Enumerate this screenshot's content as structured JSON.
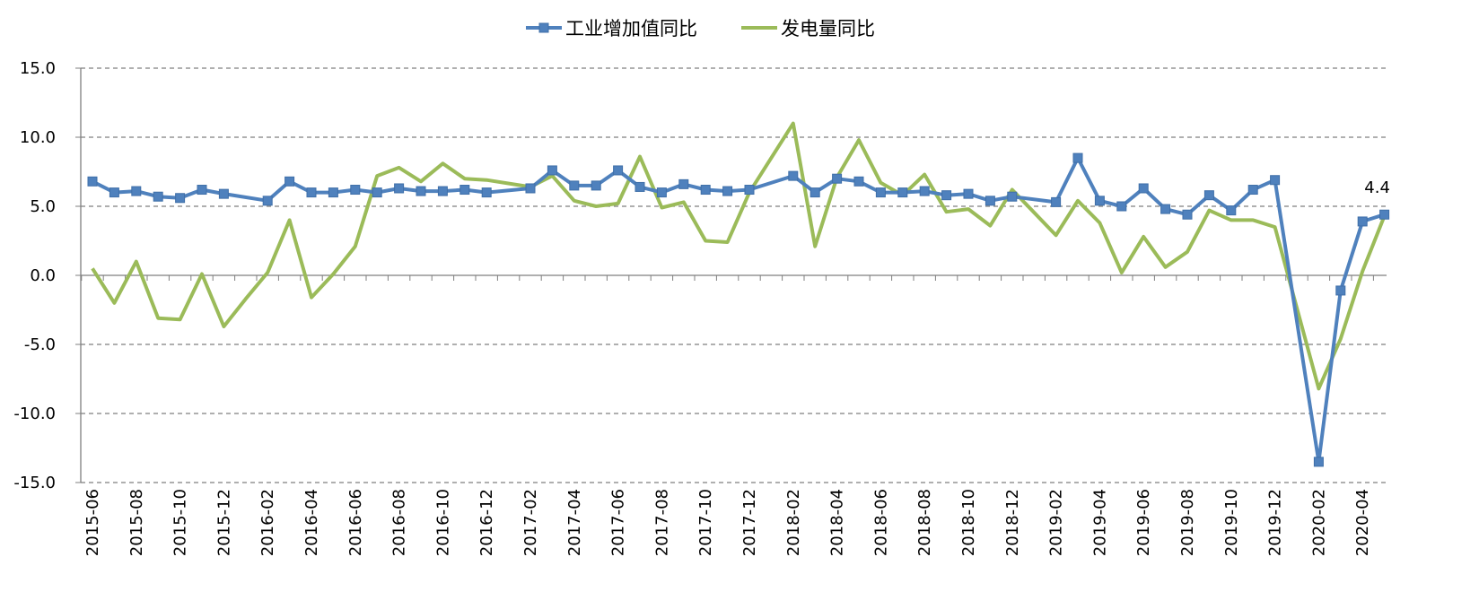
{
  "chart_data": {
    "type": "line",
    "ylim": [
      -15,
      15
    ],
    "yticks": [
      15,
      10,
      5,
      0,
      -5,
      -10,
      -15
    ],
    "ytick_labels": [
      "15.0",
      "10.0",
      "5.0",
      "0.0",
      "-5.0",
      "-10.0",
      "-15.0"
    ],
    "grid": true,
    "legend_position": "top-center",
    "x": [
      "2015-06",
      "2015-07",
      "2015-08",
      "2015-09",
      "2015-10",
      "2015-11",
      "2015-12",
      "2016-01",
      "2016-02",
      "2016-03",
      "2016-04",
      "2016-05",
      "2016-06",
      "2016-07",
      "2016-08",
      "2016-09",
      "2016-10",
      "2016-11",
      "2016-12",
      "2017-01",
      "2017-02",
      "2017-03",
      "2017-04",
      "2017-05",
      "2017-06",
      "2017-07",
      "2017-08",
      "2017-09",
      "2017-10",
      "2017-11",
      "2017-12",
      "2018-01",
      "2018-02",
      "2018-03",
      "2018-04",
      "2018-05",
      "2018-06",
      "2018-07",
      "2018-08",
      "2018-09",
      "2018-10",
      "2018-11",
      "2018-12",
      "2019-01",
      "2019-02",
      "2019-03",
      "2019-04",
      "2019-05",
      "2019-06",
      "2019-07",
      "2019-08",
      "2019-09",
      "2019-10",
      "2019-11",
      "2019-12",
      "2020-01",
      "2020-02",
      "2020-03",
      "2020-04",
      "2020-05"
    ],
    "xtick_labels": [
      "2015-06",
      "2015-08",
      "2015-10",
      "2015-12",
      "2016-02",
      "2016-04",
      "2016-06",
      "2016-08",
      "2016-10",
      "2016-12",
      "2017-02",
      "2017-04",
      "2017-06",
      "2017-08",
      "2017-10",
      "2017-12",
      "2018-02",
      "2018-04",
      "2018-06",
      "2018-08",
      "2018-10",
      "2018-12",
      "2019-02",
      "2019-04",
      "2019-06",
      "2019-08",
      "2019-10",
      "2019-12",
      "2020-02",
      "2020-04"
    ],
    "series": [
      {
        "name": "工业增加值同比",
        "color": "#4f81bd",
        "marker": "square",
        "values": [
          6.8,
          6.0,
          6.1,
          5.7,
          5.6,
          6.2,
          5.9,
          null,
          5.4,
          6.8,
          6.0,
          6.0,
          6.2,
          6.0,
          6.3,
          6.1,
          6.1,
          6.2,
          6.0,
          null,
          6.3,
          7.6,
          6.5,
          6.5,
          7.6,
          6.4,
          6.0,
          6.6,
          6.2,
          6.1,
          6.2,
          null,
          7.2,
          6.0,
          7.0,
          6.8,
          6.0,
          6.0,
          6.1,
          5.8,
          5.9,
          5.4,
          5.7,
          null,
          5.3,
          8.5,
          5.4,
          5.0,
          6.3,
          4.8,
          4.4,
          5.8,
          4.7,
          6.2,
          6.9,
          null,
          -13.5,
          -1.1,
          3.9,
          4.4
        ]
      },
      {
        "name": "发电量同比",
        "color": "#9bbb59",
        "marker": "none",
        "values": [
          0.5,
          -2.0,
          1.0,
          -3.1,
          -3.2,
          0.1,
          -3.7,
          -1.7,
          0.2,
          4.0,
          -1.6,
          0.1,
          2.1,
          7.2,
          7.8,
          6.8,
          8.1,
          7.0,
          6.9,
          null,
          6.4,
          7.2,
          5.4,
          5.0,
          5.2,
          8.6,
          4.9,
          5.3,
          2.5,
          2.4,
          6.0,
          null,
          11.0,
          2.1,
          7.1,
          9.8,
          6.7,
          5.8,
          7.3,
          4.6,
          4.8,
          3.6,
          6.2,
          null,
          2.9,
          5.4,
          3.8,
          0.2,
          2.8,
          0.6,
          1.7,
          4.7,
          4.0,
          4.0,
          3.5,
          null,
          -8.2,
          -4.6,
          0.3,
          4.3
        ]
      }
    ],
    "annotations": [
      {
        "series": 0,
        "x": "2020-05",
        "text": "4.4"
      }
    ]
  }
}
